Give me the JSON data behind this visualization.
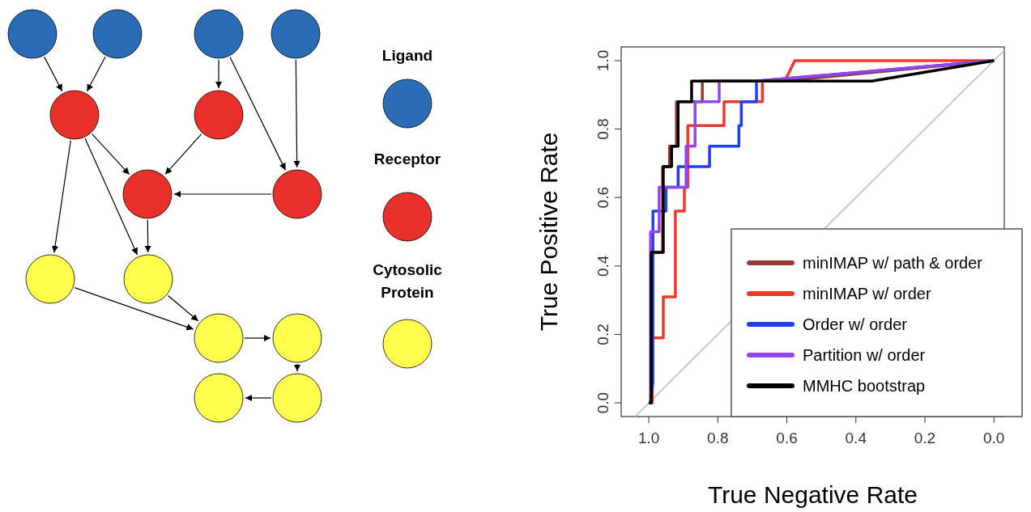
{
  "chart_data": [
    {
      "type": "other",
      "annotations": [
        "Ligand",
        "Receptor",
        "Cytosolic Protein"
      ]
    },
    {
      "type": "line",
      "xlabel": "True Negative Rate",
      "ylabel": "True Positive Rate",
      "xlim": [
        1.08,
        -0.03
      ],
      "ylim": [
        -0.04,
        1.04
      ],
      "xticks": [
        {
          "value": 1,
          "label": "1.0"
        },
        {
          "value": 0.8,
          "label": "0.8"
        },
        {
          "value": 0.6,
          "label": "0.6"
        },
        {
          "value": 0.4,
          "label": "0.4"
        },
        {
          "value": 0.2,
          "label": "0.2"
        },
        {
          "value": 0,
          "label": "0.0"
        }
      ],
      "yticks": [
        {
          "value": 0,
          "label": "0.0"
        },
        {
          "value": 0.2,
          "label": "0.2"
        },
        {
          "value": 0.4,
          "label": "0.4"
        },
        {
          "value": 0.6,
          "label": "0.6"
        },
        {
          "value": 0.8,
          "label": "0.8"
        },
        {
          "value": 1,
          "label": "1.0"
        }
      ],
      "grid": false,
      "legend": "bottom right",
      "marker": "none",
      "line_style": "solid",
      "series": [
        {
          "color": "#bbbbbb",
          "x": [
            1.04,
            -0.03
          ],
          "values": [
            -0.04,
            1.03
          ]
        },
        {
          "name": "minIMAP w/ path & order",
          "color": "#9b3a32",
          "x": [
            0.995,
            0.96,
            0.96,
            0.94,
            0.94,
            0.92,
            0.92,
            0.845,
            0.845,
            0.61,
            0
          ],
          "values": [
            0.44,
            0.44,
            0.69,
            0.69,
            0.75,
            0.75,
            0.88,
            0.88,
            0.94,
            0.94,
            1
          ]
        },
        {
          "name": "minIMAP w/ order",
          "color": "#ee3a2a",
          "x": [
            1,
            0.99,
            0.99,
            0.958,
            0.958,
            0.923,
            0.923,
            0.897,
            0.897,
            0.887,
            0.887,
            0.782,
            0.782,
            0.671,
            0.671,
            0.606,
            0.577,
            0
          ],
          "values": [
            0,
            0,
            0.19,
            0.19,
            0.31,
            0.31,
            0.56,
            0.56,
            0.63,
            0.63,
            0.81,
            0.81,
            0.88,
            0.88,
            0.94,
            0.94,
            1,
            1
          ]
        },
        {
          "name": "Order w/ order",
          "color": "#1f3ff5",
          "x": [
            1,
            0.995,
            0.988,
            0.988,
            0.95,
            0.95,
            0.915,
            0.915,
            0.824,
            0.824,
            0.739,
            0.739,
            0.732,
            0.732,
            0.688,
            0.688,
            0
          ],
          "values": [
            0,
            0,
            0.06,
            0.56,
            0.56,
            0.63,
            0.63,
            0.69,
            0.69,
            0.75,
            0.75,
            0.81,
            0.81,
            0.88,
            0.88,
            0.94,
            1
          ]
        },
        {
          "name": "Partition w/ order",
          "color": "#9146ec",
          "x": [
            1,
            0.995,
            0.995,
            0.97,
            0.97,
            0.892,
            0.892,
            0.866,
            0.866,
            0.796,
            0.796,
            0.69,
            0
          ],
          "values": [
            0,
            0,
            0.5,
            0.5,
            0.63,
            0.63,
            0.75,
            0.75,
            0.88,
            0.88,
            0.94,
            0.94,
            1
          ]
        },
        {
          "name": "MMHC bootstrap",
          "color": "#000000",
          "x": [
            1,
            0.993,
            0.993,
            0.958,
            0.958,
            0.934,
            0.934,
            0.915,
            0.915,
            0.876,
            0.876,
            0.354,
            0
          ],
          "values": [
            0,
            0,
            0.44,
            0.44,
            0.69,
            0.69,
            0.75,
            0.75,
            0.88,
            0.88,
            0.94,
            0.94,
            1
          ]
        }
      ]
    }
  ]
}
